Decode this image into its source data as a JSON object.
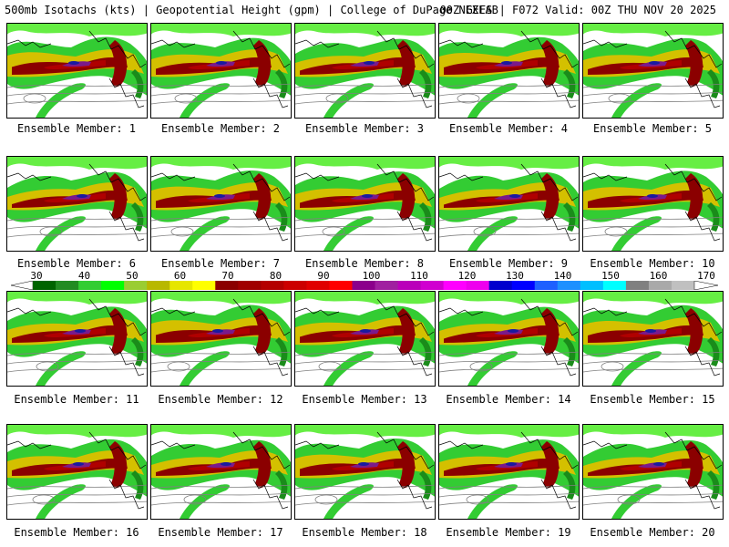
{
  "header": {
    "left": "500mb Isotachs (kts) | Geopotential Height (gpm) | College of DuPage NEXLAB",
    "right": "00Z GEFS | F072 Valid: 00Z THU NOV 20 2025"
  },
  "members": [
    {
      "label": "Ensemble Member: 1"
    },
    {
      "label": "Ensemble Member: 2"
    },
    {
      "label": "Ensemble Member: 3"
    },
    {
      "label": "Ensemble Member: 4"
    },
    {
      "label": "Ensemble Member: 5"
    },
    {
      "label": "Ensemble Member: 6"
    },
    {
      "label": "Ensemble Member: 7"
    },
    {
      "label": "Ensemble Member: 8"
    },
    {
      "label": "Ensemble Member: 9"
    },
    {
      "label": "Ensemble Member: 10"
    },
    {
      "label": "Ensemble Member: 11"
    },
    {
      "label": "Ensemble Member: 12"
    },
    {
      "label": "Ensemble Member: 13"
    },
    {
      "label": "Ensemble Member: 14"
    },
    {
      "label": "Ensemble Member: 15"
    },
    {
      "label": "Ensemble Member: 16"
    },
    {
      "label": "Ensemble Member: 17"
    },
    {
      "label": "Ensemble Member: 18"
    },
    {
      "label": "Ensemble Member: 19"
    },
    {
      "label": "Ensemble Member: 20"
    }
  ],
  "colorbar": {
    "ticks": [
      "30",
      "40",
      "50",
      "60",
      "70",
      "80",
      "90",
      "100",
      "110",
      "120",
      "130",
      "140",
      "150",
      "160",
      "170"
    ],
    "colors": [
      "#006400",
      "#228b22",
      "#32cd32",
      "#00ff00",
      "#9acd32",
      "#b8b800",
      "#e6e600",
      "#ffff00",
      "#8b0000",
      "#a00000",
      "#b40000",
      "#cc0000",
      "#e00000",
      "#ff0000",
      "#8b008b",
      "#a020a0",
      "#ba00ba",
      "#d000d0",
      "#ff00ff",
      "#ee00ee",
      "#0000cd",
      "#0000ff",
      "#1e60ff",
      "#1e90ff",
      "#00bfff",
      "#00ffff",
      "#808080",
      "#a9a9a9",
      "#c0c0c0"
    ],
    "shade_colors": {
      "green_dark": "#1a8c1a",
      "green": "#33cc33",
      "green_light": "#66ee44",
      "yellow": "#d4c000",
      "maroon": "#8b0000",
      "red": "#b00000",
      "purple": "#7a1a8c",
      "blue": "#1a1aa0",
      "map_line": "#000000",
      "height_line": "#808080"
    }
  }
}
